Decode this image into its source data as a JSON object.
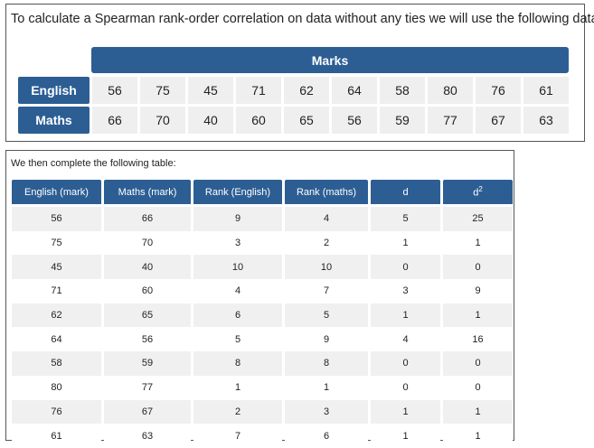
{
  "intro_text": "To calculate a Spearman rank-order correlation on data without any ties we will use the following data:",
  "marks_header": "Marks",
  "marks_rows": [
    {
      "label": "English",
      "values": [
        "56",
        "75",
        "45",
        "71",
        "62",
        "64",
        "58",
        "80",
        "76",
        "61"
      ]
    },
    {
      "label": "Maths",
      "values": [
        "66",
        "70",
        "40",
        "60",
        "65",
        "56",
        "59",
        "77",
        "67",
        "63"
      ]
    }
  ],
  "table_intro": "We then complete the following table:",
  "table": {
    "headers": [
      "English (mark)",
      "Maths (mark)",
      "Rank (English)",
      "Rank (maths)",
      "d",
      "d",
      "2"
    ],
    "rows": [
      [
        "56",
        "66",
        "9",
        "4",
        "5",
        "25"
      ],
      [
        "75",
        "70",
        "3",
        "2",
        "1",
        "1"
      ],
      [
        "45",
        "40",
        "10",
        "10",
        "0",
        "0"
      ],
      [
        "71",
        "60",
        "4",
        "7",
        "3",
        "9"
      ],
      [
        "62",
        "65",
        "6",
        "5",
        "1",
        "1"
      ],
      [
        "64",
        "56",
        "5",
        "9",
        "4",
        "16"
      ],
      [
        "58",
        "59",
        "8",
        "8",
        "0",
        "0"
      ],
      [
        "80",
        "77",
        "1",
        "1",
        "0",
        "0"
      ],
      [
        "76",
        "67",
        "2",
        "3",
        "1",
        "1"
      ],
      [
        "61",
        "63",
        "7",
        "6",
        "1",
        "1"
      ]
    ]
  },
  "colors": {
    "header_blue": "#2c5e94",
    "cell_gray": "#efefef"
  }
}
